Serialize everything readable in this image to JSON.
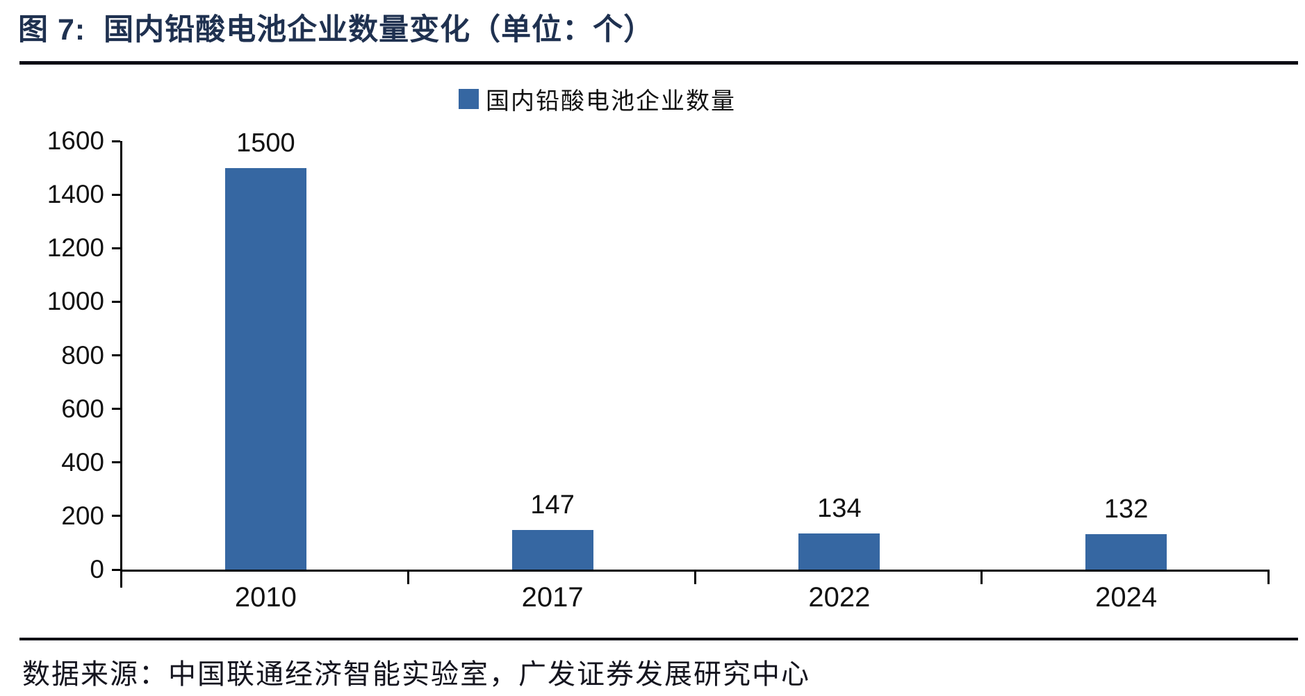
{
  "header": {
    "figure_label": "图 7:",
    "title": "图 7:  国内铅酸电池企业数量变化（单位：个）"
  },
  "chart_data": {
    "type": "bar",
    "title": "国内铅酸电池企业数量变化（单位：个）",
    "unit": "个",
    "legend": "国内铅酸电池企业数量",
    "legend_position": "top-center",
    "categories": [
      "2010",
      "2017",
      "2022",
      "2024"
    ],
    "values": [
      1500,
      147,
      134,
      132
    ],
    "data_labels_shown": true,
    "xlabel": "",
    "ylabel": "",
    "ylim": [
      0,
      1600
    ],
    "yticks": [
      0,
      200,
      400,
      600,
      800,
      1000,
      1200,
      1400,
      1600
    ],
    "grid": false,
    "bar_color": "#3667A2",
    "axis_color": "#000000",
    "title_color": "#1F3150"
  },
  "footer": {
    "source": "数据来源：中国联通经济智能实验室，广发证券发展研究中心"
  }
}
